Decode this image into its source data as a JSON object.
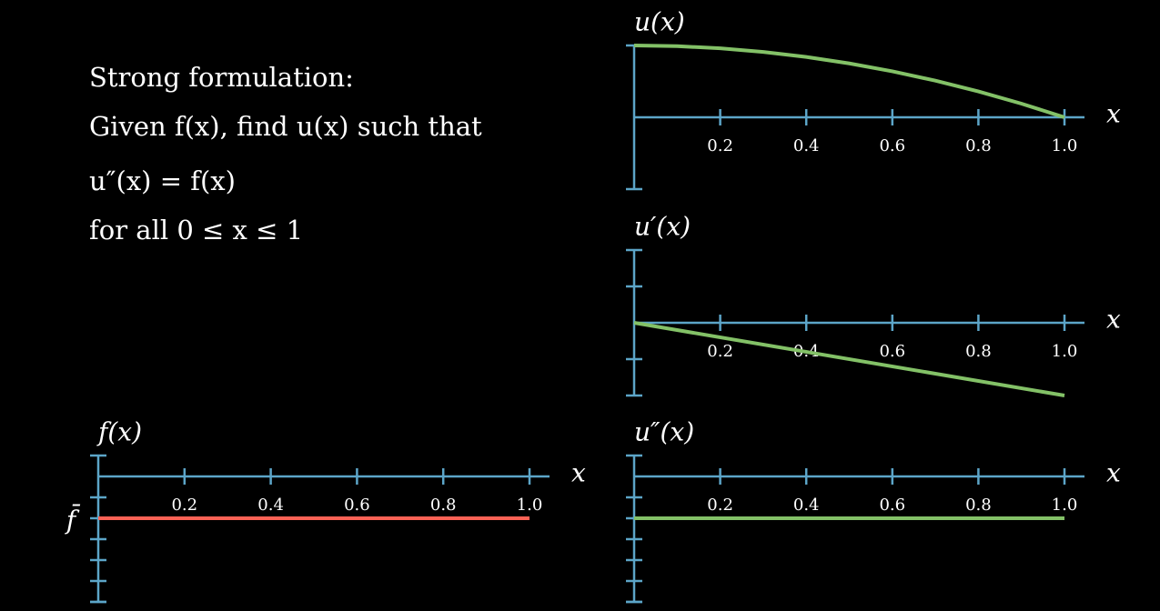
{
  "text_lines": [
    "Strong formulation:",
    "Given f(x), find u(x) such that",
    "u″(x) = f(x)",
    "for all 0 ≤ x ≤ 1"
  ],
  "chart_data": [
    {
      "type": "line",
      "title": "u(x)",
      "xlabel": "x",
      "xlim": [
        0,
        1
      ],
      "ylim": [
        -1,
        1
      ],
      "xticks": [
        0.2,
        0.4,
        0.6,
        0.8,
        {
          "value": 1,
          "label": "1.0"
        }
      ],
      "yticks": [],
      "x": [
        0,
        0.1,
        0.2,
        0.3,
        0.4,
        0.5,
        0.6,
        0.7,
        0.8,
        0.9,
        1
      ],
      "values": [
        1,
        0.99,
        0.96,
        0.91,
        0.84,
        0.75,
        0.64,
        0.51,
        0.36,
        0.19,
        0
      ],
      "color": "#83c167"
    },
    {
      "type": "line",
      "title": "u′(x)",
      "xlabel": "x",
      "xlim": [
        0,
        1
      ],
      "ylim": [
        -2,
        2
      ],
      "xticks": [
        0.2,
        0.4,
        0.6,
        0.8,
        {
          "value": 1,
          "label": "1.0"
        }
      ],
      "yticks": [
        -1,
        1
      ],
      "x": [
        0,
        1
      ],
      "values": [
        0,
        -2
      ],
      "color": "#83c167"
    },
    {
      "type": "line",
      "title": "u″(x)",
      "xlabel": "x",
      "xlim": [
        0,
        1
      ],
      "ylim": [
        -6,
        1
      ],
      "xticks": [
        0.2,
        0.4,
        0.6,
        0.8,
        {
          "value": 1,
          "label": "1.0"
        }
      ],
      "yticks": [
        -6,
        -5,
        -4,
        -3,
        -2,
        -1
      ],
      "x": [
        0,
        1
      ],
      "values": [
        -2,
        -2
      ],
      "color": "#83c167"
    },
    {
      "type": "line",
      "title": "f(x)",
      "xlabel": "x",
      "xlim": [
        0,
        1
      ],
      "ylim": [
        -6,
        1
      ],
      "xticks": [
        0.2,
        0.4,
        0.6,
        0.8,
        {
          "value": 1,
          "label": "1.0"
        }
      ],
      "yticks": [
        -6,
        -5,
        -4,
        -3,
        {
          "value": -2,
          "label": "f̄"
        },
        -1
      ],
      "x": [
        0,
        1
      ],
      "values": [
        -2,
        -2
      ],
      "color": "#fc6255"
    }
  ]
}
